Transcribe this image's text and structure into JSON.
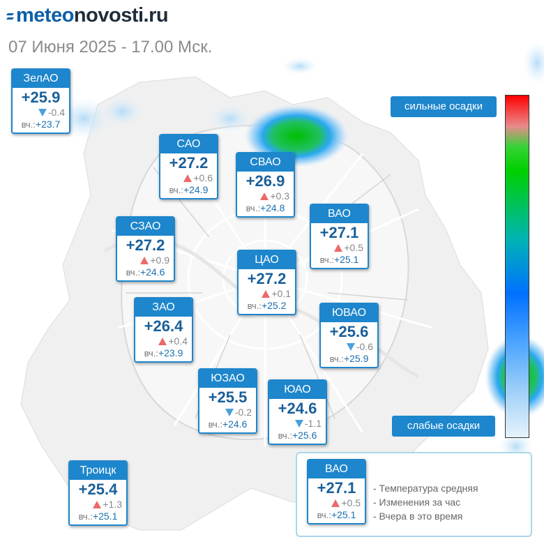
{
  "header": {
    "logo_blue": "meteo",
    "logo_dark": "novosti.ru",
    "subtitle": "07 Июня 2025 - 17.00 Мск."
  },
  "yesterday_prefix": "вч.:",
  "districts": [
    {
      "name": "ЗелАО",
      "temp": "+25.9",
      "change": "-0.4",
      "trend": "down",
      "yesterday": "+23.7"
    },
    {
      "name": "САО",
      "temp": "+27.2",
      "change": "+0.6",
      "trend": "up",
      "yesterday": "+24.9"
    },
    {
      "name": "СВАО",
      "temp": "+26.9",
      "change": "+0.3",
      "trend": "up",
      "yesterday": "+24.8"
    },
    {
      "name": "ВАО",
      "temp": "+27.1",
      "change": "+0.5",
      "trend": "up",
      "yesterday": "+25.1"
    },
    {
      "name": "СЗАО",
      "temp": "+27.2",
      "change": "+0.9",
      "trend": "up",
      "yesterday": "+24.6"
    },
    {
      "name": "ЦАО",
      "temp": "+27.2",
      "change": "+0.1",
      "trend": "up",
      "yesterday": "+25.2"
    },
    {
      "name": "ЗАО",
      "temp": "+26.4",
      "change": "+0.4",
      "trend": "up",
      "yesterday": "+23.9"
    },
    {
      "name": "ЮВАО",
      "temp": "+25.6",
      "change": "-0.6",
      "trend": "down",
      "yesterday": "+25.9"
    },
    {
      "name": "ЮЗАО",
      "temp": "+25.5",
      "change": "-0.2",
      "trend": "down",
      "yesterday": "+24.6"
    },
    {
      "name": "ЮАО",
      "temp": "+24.6",
      "change": "-1.1",
      "trend": "down",
      "yesterday": "+25.6"
    },
    {
      "name": "Троицк",
      "temp": "+25.4",
      "change": "+1.3",
      "trend": "up",
      "yesterday": "+25.1"
    }
  ],
  "precip_scale": {
    "top_label": "сильные осадки",
    "bottom_label": "слабые осадки"
  },
  "legend": {
    "sample": {
      "name": "ВАО",
      "temp": "+27.1",
      "change": "+0.5",
      "trend": "up",
      "yesterday": "+25.1"
    },
    "line1": "- Температура средняя",
    "line2": "- Изменения за час",
    "line3": "- Вчера в это время"
  },
  "colors": {
    "card_blue": "#1d86cc",
    "temp_text": "#1a5f9a",
    "trend_up": "#ec6a6a",
    "trend_down": "#4aa0dc"
  }
}
